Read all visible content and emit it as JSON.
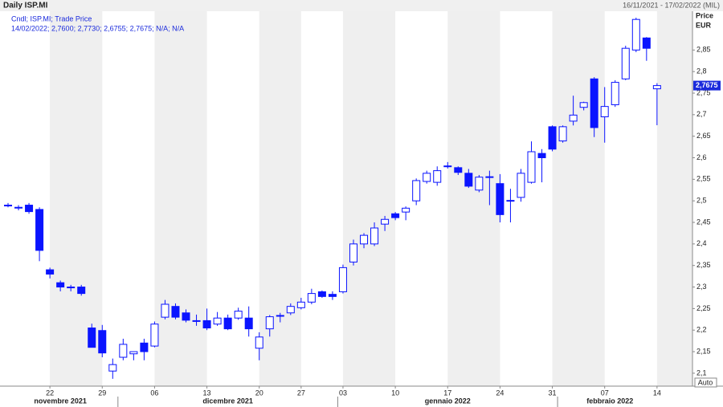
{
  "chart_data": {
    "type": "candlestick",
    "title": "Daily ISP.MI",
    "date_range": "16/11/2021 - 17/02/2022 (MIL)",
    "legend_name": "Cndl; ISP.MI; Trade Price",
    "legend_values": "14/02/2022; 2,7600; 2,7730; 2,6755; 2,7675; N/A; N/A",
    "y_axis_label": "Price",
    "y_axis_unit": "EUR",
    "scale_button": "Auto",
    "last_label": "2,7675",
    "categories": [
      null,
      null,
      null,
      null,
      "22",
      null,
      null,
      null,
      null,
      "29",
      null,
      null,
      null,
      null,
      "06",
      null,
      null,
      null,
      null,
      "13",
      null,
      null,
      null,
      null,
      "20",
      null,
      null,
      null,
      "27",
      null,
      null,
      null,
      "03",
      null,
      null,
      null,
      null,
      "10",
      null,
      null,
      null,
      null,
      "17",
      null,
      null,
      null,
      null,
      "24",
      null,
      null,
      null,
      null,
      "31",
      null,
      null,
      null,
      null,
      "07",
      null,
      null,
      null,
      null,
      "14"
    ],
    "months": [
      {
        "label": "novembre 2021",
        "start": 0,
        "end": 11
      },
      {
        "label": "dicembre 2021",
        "start": 11,
        "end": 32
      },
      {
        "label": "gennaio 2022",
        "start": 32,
        "end": 53
      },
      {
        "label": "febbraio 2022",
        "start": 53,
        "end": 63
      }
    ],
    "open": [
      2.49,
      2.485,
      2.49,
      2.48,
      2.34,
      2.31,
      2.3,
      2.3,
      2.205,
      2.199,
      2.105,
      2.137,
      2.145,
      2.17,
      2.163,
      2.23,
      2.255,
      2.24,
      2.222,
      2.222,
      2.214,
      2.228,
      2.228,
      2.228,
      2.158,
      2.203,
      2.233,
      2.24,
      2.252,
      2.265,
      2.289,
      2.283,
      2.289,
      2.358,
      2.4,
      2.4,
      2.446,
      2.47,
      2.474,
      2.5,
      2.545,
      2.543,
      2.58,
      2.577,
      2.564,
      2.525,
      2.555,
      2.54,
      2.5,
      2.508,
      2.543,
      2.61,
      2.672,
      2.639,
      2.685,
      2.717,
      2.783,
      2.695,
      2.723,
      2.783,
      2.85,
      2.878,
      2.76
    ],
    "high": [
      2.495,
      2.49,
      2.495,
      2.485,
      2.345,
      2.315,
      2.305,
      2.305,
      2.215,
      2.212,
      2.134,
      2.18,
      2.15,
      2.18,
      2.22,
      2.27,
      2.262,
      2.248,
      2.236,
      2.25,
      2.242,
      2.236,
      2.252,
      2.255,
      2.195,
      2.235,
      2.24,
      2.262,
      2.275,
      2.296,
      2.292,
      2.29,
      2.352,
      2.41,
      2.425,
      2.45,
      2.465,
      2.474,
      2.487,
      2.552,
      2.57,
      2.58,
      2.59,
      2.58,
      2.574,
      2.56,
      2.57,
      2.562,
      2.528,
      2.574,
      2.638,
      2.62,
      2.675,
      2.675,
      2.744,
      2.73,
      2.787,
      2.764,
      2.78,
      2.86,
      2.925,
      2.88,
      2.773
    ],
    "low": [
      2.485,
      2.478,
      2.47,
      2.36,
      2.32,
      2.29,
      2.29,
      2.28,
      2.16,
      2.137,
      2.087,
      2.13,
      2.13,
      2.13,
      2.16,
      2.225,
      2.225,
      2.218,
      2.21,
      2.2,
      2.21,
      2.2,
      2.224,
      2.185,
      2.13,
      2.185,
      2.218,
      2.235,
      2.248,
      2.26,
      2.275,
      2.27,
      2.285,
      2.35,
      2.39,
      2.395,
      2.43,
      2.455,
      2.455,
      2.49,
      2.54,
      2.535,
      2.575,
      2.56,
      2.53,
      2.52,
      2.49,
      2.45,
      2.45,
      2.498,
      2.54,
      2.543,
      2.615,
      2.635,
      2.675,
      2.71,
      2.648,
      2.635,
      2.718,
      2.78,
      2.845,
      2.825,
      2.6755
    ],
    "close": [
      2.49,
      2.485,
      2.475,
      2.385,
      2.33,
      2.3,
      2.3,
      2.285,
      2.16,
      2.147,
      2.12,
      2.167,
      2.15,
      2.15,
      2.214,
      2.26,
      2.23,
      2.223,
      2.221,
      2.205,
      2.228,
      2.203,
      2.244,
      2.203,
      2.184,
      2.231,
      2.234,
      2.255,
      2.265,
      2.285,
      2.278,
      2.278,
      2.345,
      2.4,
      2.42,
      2.437,
      2.457,
      2.461,
      2.483,
      2.547,
      2.564,
      2.57,
      2.581,
      2.566,
      2.534,
      2.555,
      2.556,
      2.468,
      2.501,
      2.564,
      2.614,
      2.6,
      2.62,
      2.672,
      2.699,
      2.728,
      2.67,
      2.719,
      2.775,
      2.854,
      2.921,
      2.854,
      2.7675
    ],
    "up_color": "#ffffff",
    "down_color": "#0a14ff",
    "edge_color": "#0a14ff",
    "ylim": [
      2.07,
      2.94
    ],
    "yticks": [
      {
        "value": 2.1,
        "label": "2,1"
      },
      {
        "value": 2.15,
        "label": "2,15"
      },
      {
        "value": 2.2,
        "label": "2,2"
      },
      {
        "value": 2.25,
        "label": "2,25"
      },
      {
        "value": 2.3,
        "label": "2,3"
      },
      {
        "value": 2.35,
        "label": "2,35"
      },
      {
        "value": 2.4,
        "label": "2,4"
      },
      {
        "value": 2.45,
        "label": "2,45"
      },
      {
        "value": 2.5,
        "label": "2,5"
      },
      {
        "value": 2.55,
        "label": "2,55"
      },
      {
        "value": 2.6,
        "label": "2,6"
      },
      {
        "value": 2.65,
        "label": "2,65"
      },
      {
        "value": 2.7,
        "label": "2,7"
      },
      {
        "value": 2.75,
        "label": "2,75"
      },
      {
        "value": 2.8,
        "label": "2,8"
      },
      {
        "value": 2.85,
        "label": "2,85"
      }
    ],
    "grid": false
  }
}
